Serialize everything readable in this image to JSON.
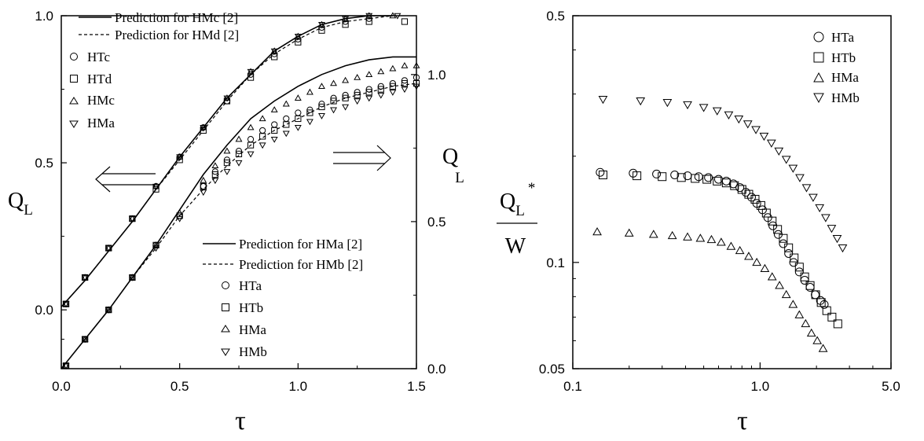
{
  "chart_data": [
    {
      "type": "line",
      "xlabel": "τ",
      "ylabel_left": "Q",
      "ylabel_left_sub": "L",
      "ylabel_right": "Q",
      "ylabel_right_sub": "L",
      "xlim": [
        0,
        1.5
      ],
      "ylim_left": [
        -0.2,
        1.0
      ],
      "ylim_right": [
        0,
        1.2
      ],
      "x_ticks": [
        "0.0",
        "0.5",
        "1.0",
        "1.5"
      ],
      "y_ticks_left": [
        "0.0",
        "0.5",
        "1.0"
      ],
      "y_ticks_right": [
        "0.0",
        "0.5",
        "1.0"
      ],
      "arrows": [
        {
          "direction": "left",
          "points_to": "left axis"
        },
        {
          "direction": "right",
          "points_to": "right axis"
        }
      ],
      "legend_top": [
        "Prediction for HMc [2]",
        "Prediction for HMd [2]",
        "HTc",
        "HTd",
        "HMc",
        "HMa"
      ],
      "legend_bottom": [
        "Prediction for HMa [2]",
        "Prediction for HMb [2]",
        "HTa",
        "HTb",
        "HMa",
        "HMb"
      ],
      "series": [
        {
          "name": "Prediction for HMc [2]",
          "axis": "left",
          "style": "solid",
          "x": [
            0,
            0.1,
            0.2,
            0.3,
            0.4,
            0.5,
            0.6,
            0.7,
            0.8,
            0.9,
            1.0,
            1.1,
            1.2,
            1.3,
            1.4
          ],
          "y": [
            0.01,
            0.1,
            0.2,
            0.3,
            0.41,
            0.52,
            0.62,
            0.72,
            0.8,
            0.88,
            0.93,
            0.97,
            0.99,
            1.0,
            1.0
          ]
        },
        {
          "name": "Prediction for HMd [2]",
          "axis": "left",
          "style": "dashed",
          "x": [
            0,
            0.1,
            0.2,
            0.3,
            0.4,
            0.5,
            0.6,
            0.7,
            0.8,
            0.9,
            1.0,
            1.1,
            1.2,
            1.3,
            1.4
          ],
          "y": [
            0.01,
            0.1,
            0.2,
            0.3,
            0.41,
            0.51,
            0.61,
            0.71,
            0.8,
            0.87,
            0.92,
            0.96,
            0.98,
            0.99,
            1.0
          ]
        },
        {
          "name": "HTc",
          "axis": "left",
          "marker": "circle",
          "x": [
            0.02,
            0.1,
            0.2,
            0.3,
            0.4,
            0.5,
            0.6,
            0.7,
            0.8,
            0.9,
            1.0,
            1.1,
            1.2,
            1.3
          ],
          "y": [
            0.02,
            0.11,
            0.21,
            0.31,
            0.42,
            0.52,
            0.62,
            0.71,
            0.8,
            0.87,
            0.92,
            0.96,
            0.98,
            0.99
          ]
        },
        {
          "name": "HTd",
          "axis": "left",
          "marker": "square",
          "x": [
            0.02,
            0.1,
            0.2,
            0.3,
            0.4,
            0.5,
            0.6,
            0.7,
            0.8,
            0.9,
            1.0,
            1.1,
            1.2,
            1.3,
            1.45
          ],
          "y": [
            0.02,
            0.11,
            0.21,
            0.31,
            0.41,
            0.51,
            0.61,
            0.71,
            0.79,
            0.86,
            0.91,
            0.95,
            0.97,
            0.98,
            0.98
          ]
        },
        {
          "name": "HMc",
          "axis": "left",
          "marker": "triangle-up",
          "x": [
            0.02,
            0.1,
            0.2,
            0.3,
            0.4,
            0.5,
            0.6,
            0.7,
            0.8,
            0.9,
            1.0,
            1.1,
            1.2,
            1.3,
            1.4
          ],
          "y": [
            0.02,
            0.11,
            0.21,
            0.31,
            0.42,
            0.52,
            0.62,
            0.72,
            0.81,
            0.88,
            0.93,
            0.97,
            0.99,
            1.0,
            1.0
          ]
        },
        {
          "name": "HMa",
          "axis": "left",
          "marker": "triangle-down",
          "x": [
            0.02,
            0.1,
            0.2,
            0.3,
            0.4,
            0.5,
            0.6,
            0.7,
            0.8,
            0.9,
            1.0,
            1.1,
            1.2,
            1.3,
            1.42
          ],
          "y": [
            0.02,
            0.11,
            0.21,
            0.31,
            0.42,
            0.52,
            0.62,
            0.72,
            0.81,
            0.88,
            0.93,
            0.97,
            0.99,
            1.0,
            1.0
          ]
        },
        {
          "name": "Prediction for HMa [2]",
          "axis": "right",
          "style": "solid",
          "x": [
            0,
            0.1,
            0.2,
            0.3,
            0.4,
            0.5,
            0.6,
            0.7,
            0.8,
            0.9,
            1.0,
            1.1,
            1.2,
            1.3,
            1.4,
            1.5
          ],
          "y": [
            0.0,
            0.1,
            0.2,
            0.31,
            0.42,
            0.54,
            0.66,
            0.76,
            0.85,
            0.91,
            0.96,
            1.0,
            1.03,
            1.05,
            1.06,
            1.06
          ]
        },
        {
          "name": "Prediction for HMb [2]",
          "axis": "right",
          "style": "dashed",
          "x": [
            0,
            0.1,
            0.2,
            0.3,
            0.4,
            0.5,
            0.6,
            0.7,
            0.8,
            0.9,
            1.0,
            1.1,
            1.2,
            1.3,
            1.4,
            1.5
          ],
          "y": [
            0.0,
            0.1,
            0.2,
            0.31,
            0.41,
            0.52,
            0.61,
            0.69,
            0.76,
            0.81,
            0.85,
            0.89,
            0.92,
            0.94,
            0.96,
            0.97
          ]
        },
        {
          "name": "HTa",
          "axis": "right",
          "marker": "circle",
          "x": [
            0.02,
            0.1,
            0.2,
            0.3,
            0.4,
            0.5,
            0.6,
            0.65,
            0.7,
            0.75,
            0.8,
            0.85,
            0.9,
            0.95,
            1.0,
            1.05,
            1.1,
            1.15,
            1.2,
            1.25,
            1.3,
            1.35,
            1.4,
            1.45,
            1.5
          ],
          "y": [
            0.01,
            0.1,
            0.2,
            0.31,
            0.42,
            0.52,
            0.62,
            0.67,
            0.71,
            0.74,
            0.78,
            0.81,
            0.83,
            0.85,
            0.87,
            0.88,
            0.9,
            0.92,
            0.93,
            0.94,
            0.95,
            0.96,
            0.97,
            0.98,
            0.99
          ]
        },
        {
          "name": "HTb",
          "axis": "right",
          "marker": "square",
          "x": [
            0.02,
            0.1,
            0.2,
            0.3,
            0.4,
            0.5,
            0.6,
            0.65,
            0.7,
            0.75,
            0.8,
            0.85,
            0.9,
            0.95,
            1.0,
            1.05,
            1.1,
            1.15,
            1.2,
            1.25,
            1.3,
            1.35,
            1.4,
            1.45,
            1.5
          ],
          "y": [
            0.01,
            0.1,
            0.2,
            0.31,
            0.42,
            0.52,
            0.62,
            0.66,
            0.7,
            0.73,
            0.76,
            0.79,
            0.81,
            0.83,
            0.85,
            0.87,
            0.89,
            0.91,
            0.92,
            0.93,
            0.94,
            0.95,
            0.96,
            0.97,
            0.97
          ]
        },
        {
          "name": "HMa",
          "axis": "right",
          "marker": "triangle-up",
          "x": [
            0.02,
            0.1,
            0.2,
            0.3,
            0.4,
            0.5,
            0.6,
            0.65,
            0.7,
            0.75,
            0.8,
            0.85,
            0.9,
            0.95,
            1.0,
            1.05,
            1.1,
            1.15,
            1.2,
            1.25,
            1.3,
            1.35,
            1.4,
            1.45,
            1.5
          ],
          "y": [
            0.01,
            0.1,
            0.2,
            0.31,
            0.42,
            0.53,
            0.64,
            0.69,
            0.74,
            0.78,
            0.82,
            0.85,
            0.88,
            0.9,
            0.92,
            0.94,
            0.96,
            0.97,
            0.98,
            0.99,
            1.0,
            1.01,
            1.02,
            1.03,
            1.03
          ]
        },
        {
          "name": "HMb",
          "axis": "right",
          "marker": "triangle-down",
          "x": [
            0.02,
            0.1,
            0.2,
            0.3,
            0.4,
            0.5,
            0.6,
            0.65,
            0.7,
            0.75,
            0.8,
            0.85,
            0.9,
            0.95,
            1.0,
            1.05,
            1.1,
            1.15,
            1.2,
            1.25,
            1.3,
            1.35,
            1.4,
            1.45,
            1.5
          ],
          "y": [
            0.01,
            0.1,
            0.2,
            0.31,
            0.41,
            0.51,
            0.6,
            0.64,
            0.67,
            0.7,
            0.73,
            0.76,
            0.78,
            0.8,
            0.82,
            0.84,
            0.86,
            0.88,
            0.89,
            0.91,
            0.92,
            0.93,
            0.94,
            0.95,
            0.96
          ]
        }
      ]
    },
    {
      "type": "scatter",
      "xlabel": "τ",
      "ylabel_top": "Q",
      "ylabel_top_sub": "L",
      "ylabel_top_sup": "*",
      "ylabel_bottom": "W",
      "x_scale": "log",
      "y_scale": "log",
      "xlim": [
        0.1,
        5.0
      ],
      "ylim": [
        0.05,
        0.5
      ],
      "x_ticks": [
        "0.1",
        "1.0",
        "5.0"
      ],
      "y_ticks": [
        "0.05",
        "0.1",
        "0.5"
      ],
      "legend": [
        "HTa",
        "HTb",
        "HMa",
        "HMb"
      ],
      "series": [
        {
          "name": "HTa",
          "marker": "circle",
          "x": [
            0.14,
            0.21,
            0.28,
            0.35,
            0.41,
            0.47,
            0.53,
            0.6,
            0.66,
            0.72,
            0.78,
            0.84,
            0.9,
            0.96,
            1.03,
            1.1,
            1.17,
            1.25,
            1.33,
            1.42,
            1.51,
            1.62,
            1.73,
            1.85,
            1.97,
            2.1,
            2.2
          ],
          "y": [
            0.18,
            0.179,
            0.178,
            0.177,
            0.176,
            0.175,
            0.174,
            0.172,
            0.17,
            0.167,
            0.163,
            0.158,
            0.153,
            0.147,
            0.141,
            0.134,
            0.127,
            0.12,
            0.113,
            0.106,
            0.1,
            0.094,
            0.089,
            0.085,
            0.081,
            0.078,
            0.076
          ]
        },
        {
          "name": "HTb",
          "marker": "square",
          "x": [
            0.145,
            0.22,
            0.3,
            0.38,
            0.45,
            0.52,
            0.59,
            0.66,
            0.73,
            0.8,
            0.87,
            0.94,
            1.01,
            1.08,
            1.16,
            1.24,
            1.33,
            1.42,
            1.52,
            1.62,
            1.73,
            1.85,
            1.98,
            2.12,
            2.27,
            2.42,
            2.6
          ],
          "y": [
            0.177,
            0.176,
            0.175,
            0.174,
            0.173,
            0.172,
            0.17,
            0.168,
            0.165,
            0.161,
            0.156,
            0.151,
            0.145,
            0.138,
            0.131,
            0.124,
            0.117,
            0.11,
            0.103,
            0.097,
            0.091,
            0.086,
            0.081,
            0.077,
            0.073,
            0.07,
            0.067
          ]
        },
        {
          "name": "HMa",
          "marker": "triangle-up",
          "x": [
            0.135,
            0.2,
            0.27,
            0.34,
            0.41,
            0.48,
            0.55,
            0.62,
            0.7,
            0.78,
            0.87,
            0.96,
            1.06,
            1.16,
            1.27,
            1.38,
            1.5,
            1.62,
            1.75,
            1.88,
            2.02,
            2.17
          ],
          "y": [
            0.122,
            0.121,
            0.12,
            0.119,
            0.118,
            0.117,
            0.116,
            0.114,
            0.111,
            0.108,
            0.104,
            0.1,
            0.096,
            0.091,
            0.086,
            0.081,
            0.076,
            0.071,
            0.067,
            0.063,
            0.06,
            0.057
          ]
        },
        {
          "name": "HMb",
          "marker": "triangle-down",
          "x": [
            0.145,
            0.23,
            0.32,
            0.41,
            0.5,
            0.59,
            0.68,
            0.77,
            0.86,
            0.95,
            1.05,
            1.15,
            1.26,
            1.38,
            1.5,
            1.63,
            1.77,
            1.92,
            2.08,
            2.24,
            2.41,
            2.58,
            2.76
          ],
          "y": [
            0.29,
            0.287,
            0.284,
            0.28,
            0.275,
            0.269,
            0.262,
            0.255,
            0.247,
            0.238,
            0.228,
            0.218,
            0.207,
            0.196,
            0.185,
            0.174,
            0.163,
            0.153,
            0.143,
            0.134,
            0.125,
            0.117,
            0.11
          ]
        }
      ]
    }
  ]
}
